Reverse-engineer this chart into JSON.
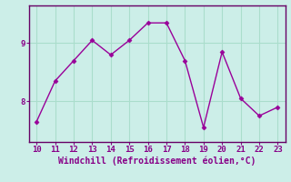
{
  "x": [
    10,
    11,
    12,
    13,
    14,
    15,
    16,
    17,
    18,
    19,
    20,
    21,
    22,
    23
  ],
  "y": [
    7.65,
    8.35,
    8.7,
    9.05,
    8.8,
    9.05,
    9.35,
    9.35,
    8.7,
    7.55,
    8.85,
    8.05,
    7.75,
    7.9
  ],
  "line_color": "#990099",
  "marker": "D",
  "marker_size": 2.5,
  "line_width": 1.0,
  "xlabel": "Windchill (Refroidissement éolien,°C)",
  "xlabel_fontsize": 7,
  "bg_color": "#cceee8",
  "grid_color": "#aaddcc",
  "yticks": [
    8,
    9
  ],
  "xticks": [
    10,
    11,
    12,
    13,
    14,
    15,
    16,
    17,
    18,
    19,
    20,
    21,
    22,
    23
  ],
  "ylim": [
    7.3,
    9.65
  ],
  "xlim": [
    9.6,
    23.4
  ]
}
